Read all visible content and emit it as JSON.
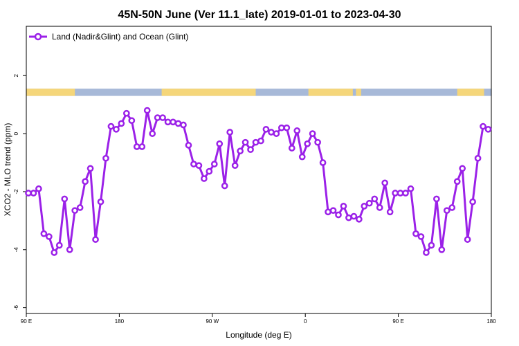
{
  "chart_data": {
    "type": "line",
    "title": "45N-50N June (Ver 11.1_late)   2019-01-01 to 2023-04-30",
    "xlabel": "Longitude (deg E)",
    "ylabel": "XCO2 - MLO trend (ppm)",
    "x_ticks": [
      {
        "value": 90,
        "label": "90 E"
      },
      {
        "value": 180,
        "label": "180"
      },
      {
        "value": 270,
        "label": "90 W"
      },
      {
        "value": 360,
        "label": "0"
      },
      {
        "value": 450,
        "label": "90 E"
      },
      {
        "value": 540,
        "label": "180"
      }
    ],
    "y_ticks": [
      {
        "value": -6,
        "label": "-6"
      },
      {
        "value": -4,
        "label": "-4"
      },
      {
        "value": -2,
        "label": "-2"
      },
      {
        "value": 0,
        "label": "0"
      },
      {
        "value": 2,
        "label": "2"
      }
    ],
    "xlim": [
      90,
      540
    ],
    "ylim": [
      -6.2,
      3.7
    ],
    "grid": false,
    "legend_position": "top-left",
    "land_band": {
      "y_range": [
        1.3,
        1.55
      ],
      "land_color": "#f5d67a",
      "ocean_color": "#a7b9d8"
    },
    "series": [
      {
        "name": "Land (Nadir&Glint) and Ocean (Glint)",
        "color": "#9b21e8",
        "x": [
          92,
          97,
          102,
          107,
          112,
          117,
          122,
          127,
          132,
          137,
          142,
          147,
          152,
          157,
          162,
          167,
          172,
          177,
          182,
          187,
          192,
          197,
          202,
          207,
          212,
          217,
          222,
          227,
          232,
          237,
          242,
          247,
          252,
          257,
          262,
          267,
          272,
          277,
          282,
          287,
          292,
          297,
          302,
          307,
          312,
          317,
          322,
          327,
          332,
          337,
          342,
          347,
          352,
          357,
          362,
          367,
          372,
          377,
          382,
          387,
          392,
          397,
          402,
          407,
          412,
          417,
          422,
          427,
          432,
          437,
          442,
          447,
          452,
          457,
          462,
          467,
          472,
          477,
          482,
          487,
          492,
          497,
          502,
          507,
          512,
          517,
          522,
          527,
          532,
          537
        ],
        "y": [
          -2.05,
          -2.05,
          -1.9,
          -3.45,
          -3.55,
          -4.1,
          -3.85,
          -2.25,
          -4.0,
          -2.65,
          -2.55,
          -1.65,
          -1.2,
          -3.65,
          -2.35,
          -0.85,
          0.25,
          0.15,
          0.35,
          0.7,
          0.45,
          -0.45,
          -0.45,
          0.8,
          0.0,
          0.55,
          0.55,
          0.4,
          0.4,
          0.35,
          0.3,
          -0.4,
          -1.05,
          -1.1,
          -1.55,
          -1.3,
          -1.05,
          -0.35,
          -1.8,
          0.05,
          -1.1,
          -0.6,
          -0.3,
          -0.55,
          -0.3,
          -0.25,
          0.15,
          0.05,
          0.0,
          0.2,
          0.2,
          -0.5,
          0.1,
          -0.8,
          -0.35,
          0.0,
          -0.3,
          -1.0,
          -2.7,
          -2.65,
          -2.8,
          -2.5,
          -2.9,
          -2.85,
          -2.95,
          -2.5,
          -2.4,
          -2.25,
          -2.55,
          -1.7,
          -2.7,
          -2.05,
          -2.05,
          -2.05,
          -1.9,
          -3.45,
          -3.55,
          -4.1,
          -3.85,
          -2.25,
          -4.0,
          -2.65,
          -2.55,
          -1.65,
          -1.2,
          -3.65,
          -2.35,
          -0.85,
          0.25,
          0.15
        ]
      }
    ]
  }
}
